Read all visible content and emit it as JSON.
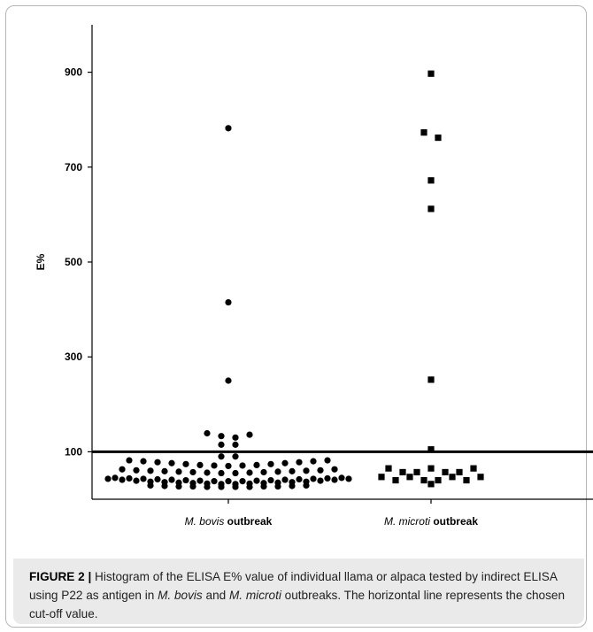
{
  "chart_data": {
    "type": "scatter",
    "categories": [
      "M. bovis outbreak",
      "M. microti outbreak"
    ],
    "category_labels": [
      {
        "italic": "M. bovis",
        "bold": " outbreak"
      },
      {
        "italic": "M. microti",
        "bold": " outbreak"
      }
    ],
    "ylabel": "E%",
    "ylim": [
      0,
      1000
    ],
    "yticks": [
      100,
      300,
      500,
      700,
      900
    ],
    "cutoff": 100,
    "series": [
      {
        "marker": "circle",
        "points": [
          {
            "i": 0,
            "y": 782
          },
          {
            "i": 0,
            "y": 415
          },
          {
            "i": 0,
            "y": 250
          },
          {
            "i": -3,
            "y": 139
          },
          {
            "i": -1,
            "y": 133
          },
          {
            "i": 1,
            "y": 130
          },
          {
            "i": 3,
            "y": 136
          },
          {
            "i": -1,
            "y": 115
          },
          {
            "i": 1,
            "y": 115
          },
          {
            "i": -1,
            "y": 90
          },
          {
            "i": 1,
            "y": 90
          },
          {
            "i": -14,
            "y": 82
          },
          {
            "i": -12,
            "y": 80
          },
          {
            "i": -10,
            "y": 78
          },
          {
            "i": -8,
            "y": 76
          },
          {
            "i": -6,
            "y": 74
          },
          {
            "i": -4,
            "y": 72
          },
          {
            "i": -2,
            "y": 71
          },
          {
            "i": 0,
            "y": 70
          },
          {
            "i": 2,
            "y": 71
          },
          {
            "i": 4,
            "y": 72
          },
          {
            "i": 6,
            "y": 74
          },
          {
            "i": 8,
            "y": 76
          },
          {
            "i": 10,
            "y": 78
          },
          {
            "i": 12,
            "y": 80
          },
          {
            "i": 14,
            "y": 82
          },
          {
            "i": -15,
            "y": 63
          },
          {
            "i": -13,
            "y": 61
          },
          {
            "i": -11,
            "y": 60
          },
          {
            "i": -9,
            "y": 59
          },
          {
            "i": -7,
            "y": 58
          },
          {
            "i": -5,
            "y": 57
          },
          {
            "i": -3,
            "y": 56
          },
          {
            "i": -1,
            "y": 55
          },
          {
            "i": 1,
            "y": 55
          },
          {
            "i": 3,
            "y": 56
          },
          {
            "i": 5,
            "y": 57
          },
          {
            "i": 7,
            "y": 58
          },
          {
            "i": 9,
            "y": 59
          },
          {
            "i": 11,
            "y": 60
          },
          {
            "i": 13,
            "y": 61
          },
          {
            "i": 15,
            "y": 63
          },
          {
            "i": -16,
            "y": 45
          },
          {
            "i": -14,
            "y": 44
          },
          {
            "i": -12,
            "y": 43
          },
          {
            "i": -10,
            "y": 42
          },
          {
            "i": -8,
            "y": 41
          },
          {
            "i": -6,
            "y": 40
          },
          {
            "i": -4,
            "y": 39
          },
          {
            "i": -2,
            "y": 38
          },
          {
            "i": 0,
            "y": 38
          },
          {
            "i": 2,
            "y": 38
          },
          {
            "i": 4,
            "y": 39
          },
          {
            "i": 6,
            "y": 40
          },
          {
            "i": 8,
            "y": 41
          },
          {
            "i": 10,
            "y": 42
          },
          {
            "i": 12,
            "y": 43
          },
          {
            "i": 14,
            "y": 44
          },
          {
            "i": 16,
            "y": 45
          },
          {
            "i": -17,
            "y": 43
          },
          {
            "i": -15,
            "y": 41
          },
          {
            "i": -13,
            "y": 39
          },
          {
            "i": -11,
            "y": 37
          },
          {
            "i": -9,
            "y": 36
          },
          {
            "i": -7,
            "y": 35
          },
          {
            "i": -5,
            "y": 34
          },
          {
            "i": -3,
            "y": 33
          },
          {
            "i": -1,
            "y": 32
          },
          {
            "i": 1,
            "y": 32
          },
          {
            "i": 3,
            "y": 33
          },
          {
            "i": 5,
            "y": 34
          },
          {
            "i": 7,
            "y": 35
          },
          {
            "i": 9,
            "y": 36
          },
          {
            "i": 11,
            "y": 37
          },
          {
            "i": 13,
            "y": 39
          },
          {
            "i": 15,
            "y": 41
          },
          {
            "i": 17,
            "y": 43
          },
          {
            "i": -11,
            "y": 29
          },
          {
            "i": -9,
            "y": 28
          },
          {
            "i": -7,
            "y": 27
          },
          {
            "i": -5,
            "y": 27
          },
          {
            "i": -3,
            "y": 26
          },
          {
            "i": -1,
            "y": 26
          },
          {
            "i": 1,
            "y": 26
          },
          {
            "i": 3,
            "y": 26
          },
          {
            "i": 5,
            "y": 27
          },
          {
            "i": 7,
            "y": 27
          },
          {
            "i": 9,
            "y": 28
          },
          {
            "i": 11,
            "y": 29
          }
        ]
      },
      {
        "marker": "square",
        "points": [
          {
            "i": 0,
            "y": 897
          },
          {
            "i": -1,
            "y": 773
          },
          {
            "i": 1,
            "y": 762
          },
          {
            "i": 0,
            "y": 672
          },
          {
            "i": 0,
            "y": 612
          },
          {
            "i": 0,
            "y": 252
          },
          {
            "i": 0,
            "y": 105
          },
          {
            "i": -6,
            "y": 65
          },
          {
            "i": 0,
            "y": 65
          },
          {
            "i": 6,
            "y": 65
          },
          {
            "i": -4,
            "y": 57
          },
          {
            "i": -2,
            "y": 57
          },
          {
            "i": 2,
            "y": 57
          },
          {
            "i": 4,
            "y": 57
          },
          {
            "i": -7,
            "y": 47
          },
          {
            "i": -3,
            "y": 47
          },
          {
            "i": 3,
            "y": 47
          },
          {
            "i": 7,
            "y": 47
          },
          {
            "i": -5,
            "y": 40
          },
          {
            "i": -1,
            "y": 40
          },
          {
            "i": 1,
            "y": 40
          },
          {
            "i": 5,
            "y": 40
          },
          {
            "i": 0,
            "y": 32
          }
        ]
      }
    ]
  },
  "caption": {
    "label": "FIGURE 2 |",
    "segments": [
      {
        "text": " Histogram of the ELISA E% value of individual llama or alpaca tested by indirect ELISA using P22 as antigen in ",
        "italic": false
      },
      {
        "text": "M. bovis",
        "italic": true
      },
      {
        "text": " and ",
        "italic": false
      },
      {
        "text": "M. microti",
        "italic": true
      },
      {
        "text": " outbreaks. The horizontal line represents the chosen cut-off value.",
        "italic": false
      }
    ]
  }
}
